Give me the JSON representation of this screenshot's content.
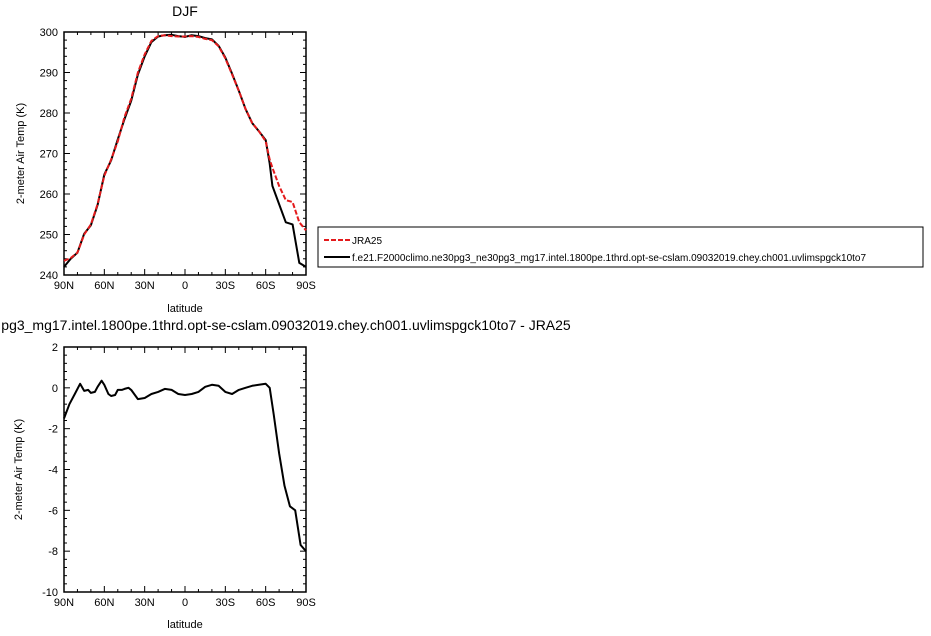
{
  "chart_data": [
    {
      "type": "line",
      "title": "DJF",
      "xlabel": "latitude",
      "ylabel": "2-meter Air Temp (K)",
      "xlim": [
        -90,
        90
      ],
      "ylim": [
        240,
        300
      ],
      "x_tick_labels": [
        "90N",
        "60N",
        "30N",
        "0",
        "30S",
        "60S",
        "90S"
      ],
      "y_tick_labels": [
        "240",
        "250",
        "260",
        "270",
        "280",
        "290",
        "300"
      ],
      "legend_placement": "right",
      "series": [
        {
          "name": "JRA25",
          "color": "#e31a1c",
          "dashed": true,
          "x": [
            -90,
            -85,
            -80,
            -75,
            -70,
            -65,
            -60,
            -55,
            -50,
            -45,
            -40,
            -35,
            -30,
            -25,
            -20,
            -15,
            -10,
            -5,
            0,
            5,
            10,
            15,
            20,
            25,
            30,
            35,
            40,
            45,
            50,
            55,
            60,
            63,
            65,
            70,
            75,
            80,
            85,
            90
          ],
          "y": [
            243.5,
            244.2,
            245.5,
            250.0,
            252.5,
            257.5,
            264.5,
            268.5,
            273.0,
            279.0,
            283.5,
            290.0,
            294.5,
            297.8,
            299.0,
            299.2,
            299.0,
            298.9,
            298.9,
            299.0,
            298.8,
            298.3,
            298.0,
            296.5,
            293.5,
            289.5,
            285.5,
            281.0,
            277.5,
            275.5,
            273.0,
            268.5,
            266.5,
            262.0,
            258.5,
            258.0,
            253.0,
            251.0
          ]
        },
        {
          "name": "f.e21.F2000climo.ne30pg3_ne30pg3_mg17.intel.1800pe.1thrd.opt-se-cslam.09032019.chey.ch001.uvlimspgck10to7",
          "color": "#000000",
          "dashed": false,
          "x": [
            -90,
            -85,
            -80,
            -75,
            -70,
            -65,
            -60,
            -55,
            -50,
            -45,
            -40,
            -35,
            -30,
            -25,
            -20,
            -15,
            -10,
            -5,
            0,
            5,
            10,
            15,
            20,
            25,
            30,
            35,
            40,
            45,
            50,
            55,
            60,
            63,
            65,
            70,
            75,
            80,
            85,
            90
          ],
          "y": [
            242.0,
            244.0,
            245.5,
            250.2,
            252.3,
            257.3,
            264.8,
            268.3,
            273.5,
            278.5,
            283.0,
            289.5,
            294.0,
            297.5,
            298.9,
            299.2,
            299.3,
            299.0,
            298.8,
            299.2,
            299.0,
            298.5,
            298.2,
            296.6,
            293.7,
            289.7,
            285.5,
            281.0,
            277.5,
            275.5,
            273.3,
            267.5,
            262.0,
            257.5,
            253.0,
            252.5,
            243.0,
            242.0
          ]
        }
      ]
    },
    {
      "type": "line",
      "title": "pg3_mg17.intel.1800pe.1thrd.opt-se-cslam.09032019.chey.ch001.uvlimspgck10to7 - JRA25",
      "xlabel": "latitude",
      "ylabel": "2-meter Air Temp (K)",
      "xlim": [
        -90,
        90
      ],
      "ylim": [
        -10,
        2
      ],
      "x_tick_labels": [
        "90N",
        "60N",
        "30N",
        "0",
        "30S",
        "60S",
        "90S"
      ],
      "y_tick_labels": [
        "2",
        "0",
        "-2",
        "-4",
        "-6",
        "-8",
        "-10"
      ],
      "series": [
        {
          "color": "#000000",
          "x": [
            -90,
            -86,
            -82,
            -78,
            -75,
            -72,
            -70,
            -67,
            -65,
            -62,
            -60,
            -57,
            -55,
            -52,
            -50,
            -47,
            -45,
            -42,
            -40,
            -35,
            -30,
            -25,
            -20,
            -15,
            -10,
            -5,
            0,
            5,
            10,
            15,
            20,
            25,
            30,
            35,
            40,
            45,
            50,
            55,
            60,
            63,
            66,
            70,
            74,
            78,
            82,
            86,
            90
          ],
          "y": [
            -1.5,
            -0.8,
            -0.3,
            0.2,
            -0.15,
            -0.1,
            -0.25,
            -0.2,
            0.05,
            0.35,
            0.15,
            -0.3,
            -0.4,
            -0.35,
            -0.1,
            -0.1,
            -0.05,
            0.0,
            -0.1,
            -0.55,
            -0.5,
            -0.3,
            -0.2,
            -0.05,
            -0.1,
            -0.3,
            -0.35,
            -0.3,
            -0.2,
            0.05,
            0.15,
            0.1,
            -0.2,
            -0.3,
            -0.1,
            0.0,
            0.1,
            0.15,
            0.2,
            0.0,
            -1.3,
            -3.2,
            -4.8,
            -5.8,
            -6.0,
            -7.7,
            -8.0
          ]
        }
      ]
    }
  ],
  "legend": {
    "entries": [
      {
        "label": "JRA25",
        "color": "#e31a1c",
        "dashed": true
      },
      {
        "label": "f.e21.F2000climo.ne30pg3_ne30pg3_mg17.intel.1800pe.1thrd.opt-se-cslam.09032019.chey.ch001.uvlimspgck10to7",
        "color": "#000000",
        "dashed": false
      }
    ]
  }
}
